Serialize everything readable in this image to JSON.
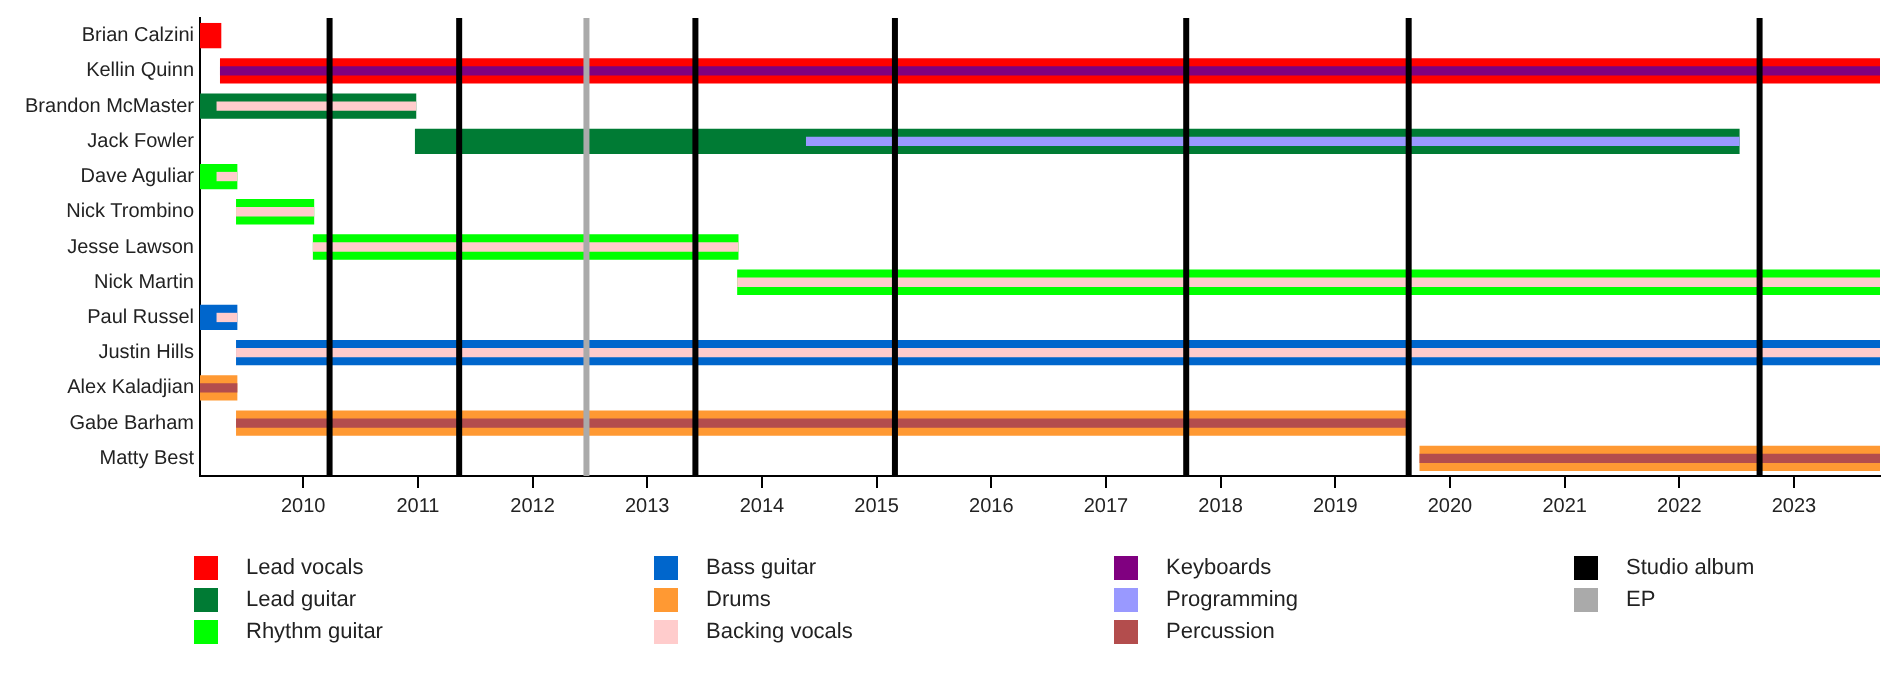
{
  "chart_data": {
    "type": "bar",
    "orientation": "horizontal",
    "grid": false,
    "legend": "bottom",
    "categories": [
      "Brian Calzini",
      "Kellin Quinn",
      "Brandon McMaster",
      "Jack Fowler",
      "Dave Aguliar",
      "Nick Trombino",
      "Jesse Lawson",
      "Nick Martin",
      "Paul Russel",
      "Justin Hills",
      "Alex Kaladjian",
      "Gabe Barham",
      "Matty Best"
    ],
    "xlim": [
      2009.1,
      2023.75
    ],
    "xticks": [
      2010,
      2011,
      2012,
      2013,
      2014,
      2015,
      2016,
      2017,
      2018,
      2019,
      2020,
      2021,
      2022,
      2023
    ],
    "series": [
      {
        "name": "Lead vocals",
        "color": "#ff0000",
        "base": [
          2009.1,
          2009.28,
          null,
          null,
          null,
          null,
          null,
          null,
          null,
          null,
          null,
          null,
          null
        ],
        "values": [
          0.18,
          14.47,
          null,
          null,
          null,
          null,
          null,
          null,
          null,
          null,
          null,
          null,
          null
        ]
      },
      {
        "name": "Lead guitar",
        "color": "#007b34",
        "base": [
          null,
          null,
          2009.1,
          2010.98,
          null,
          null,
          null,
          null,
          null,
          null,
          null,
          null,
          null
        ],
        "values": [
          null,
          null,
          1.88,
          11.54,
          null,
          null,
          null,
          null,
          null,
          null,
          null,
          null,
          null
        ]
      },
      {
        "name": "Rhythm guitar",
        "color": "#00ff00",
        "base": [
          null,
          null,
          null,
          null,
          2009.1,
          2009.42,
          2010.09,
          2013.79,
          null,
          null,
          null,
          null,
          null
        ],
        "values": [
          null,
          null,
          null,
          null,
          0.32,
          0.67,
          3.7,
          9.96,
          null,
          null,
          null,
          null,
          null
        ]
      },
      {
        "name": "Bass guitar",
        "color": "#0066cc",
        "base": [
          null,
          null,
          null,
          null,
          null,
          null,
          null,
          null,
          2009.1,
          2009.42,
          null,
          null,
          null
        ],
        "values": [
          null,
          null,
          null,
          null,
          null,
          null,
          null,
          null,
          0.32,
          14.33,
          null,
          null,
          null
        ]
      },
      {
        "name": "Drums",
        "color": "#ff9933",
        "base": [
          null,
          null,
          null,
          null,
          null,
          null,
          null,
          null,
          null,
          null,
          2009.1,
          2009.42,
          2019.74
        ],
        "values": [
          null,
          null,
          null,
          null,
          null,
          null,
          null,
          null,
          null,
          null,
          0.32,
          10.22,
          4.01
        ]
      },
      {
        "name": "Backing vocals",
        "color": "#ffcccc",
        "base": [
          null,
          null,
          2009.25,
          null,
          2009.25,
          2009.42,
          2010.09,
          2013.79,
          2009.25,
          2009.42,
          null,
          null,
          null
        ],
        "values": [
          null,
          null,
          1.73,
          null,
          0.17,
          0.67,
          3.7,
          9.96,
          0.17,
          14.33,
          null,
          null,
          null
        ]
      },
      {
        "name": "Keyboards",
        "color": "#800080",
        "base": [
          null,
          2009.28,
          null,
          null,
          null,
          null,
          null,
          null,
          null,
          null,
          null,
          null,
          null
        ],
        "values": [
          null,
          14.47,
          null,
          null,
          null,
          null,
          null,
          null,
          null,
          null,
          null,
          null,
          null
        ]
      },
      {
        "name": "Programming",
        "color": "#9999ff",
        "base": [
          null,
          null,
          null,
          2014.39,
          null,
          null,
          null,
          null,
          null,
          null,
          null,
          null,
          null
        ],
        "values": [
          null,
          null,
          null,
          8.13,
          null,
          null,
          null,
          null,
          null,
          null,
          null,
          null,
          null
        ]
      },
      {
        "name": "Percussion",
        "color": "#b34d4d",
        "base": [
          null,
          null,
          null,
          null,
          null,
          null,
          null,
          null,
          null,
          null,
          2009.1,
          2009.42,
          2019.74
        ],
        "values": [
          null,
          null,
          null,
          null,
          null,
          null,
          null,
          null,
          null,
          null,
          0.32,
          10.22,
          4.01
        ]
      }
    ],
    "ref_lines": [
      {
        "axis": "x",
        "value": 2010.23,
        "label": "Studio album",
        "color": "#000000"
      },
      {
        "axis": "x",
        "value": 2011.36,
        "label": null,
        "color": "#000000"
      },
      {
        "axis": "x",
        "value": 2013.42,
        "label": null,
        "color": "#000000"
      },
      {
        "axis": "x",
        "value": 2015.16,
        "label": null,
        "color": "#000000"
      },
      {
        "axis": "x",
        "value": 2017.7,
        "label": null,
        "color": "#000000"
      },
      {
        "axis": "x",
        "value": 2019.64,
        "label": null,
        "color": "#000000"
      },
      {
        "axis": "x",
        "value": 2022.7,
        "label": null,
        "color": "#000000"
      },
      {
        "axis": "x",
        "value": 2012.47,
        "label": "EP",
        "color": "#aaaaaa"
      }
    ]
  }
}
